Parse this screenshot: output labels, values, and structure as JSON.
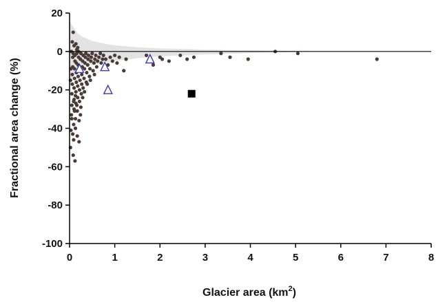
{
  "chart_data": {
    "type": "scatter",
    "xlabel": "Glacier area (km",
    "xlabel_sup": "2",
    "xlabel_close": ")",
    "ylabel": "Fractional area change (%)",
    "xlim": [
      0,
      8
    ],
    "ylim": [
      -100,
      20
    ],
    "x_ticks": [
      0,
      1,
      2,
      3,
      4,
      5,
      6,
      7,
      8
    ],
    "y_ticks": [
      20,
      0,
      -20,
      -40,
      -60,
      -80,
      -100
    ],
    "grid": false,
    "legend": "none",
    "colors": {
      "axis": "#000000",
      "band": "#e3e3e3",
      "dots": "#4a3b37",
      "triangles": "#3a3ab8",
      "square": "#000000"
    },
    "band": {
      "x": [
        0.0,
        0.05,
        0.1,
        0.2,
        0.3,
        0.5,
        0.8,
        1.0,
        1.5,
        2.0,
        3.0,
        4.0,
        5.0
      ],
      "upper": [
        16,
        14,
        12,
        9,
        7.5,
        5.5,
        4,
        3.2,
        2.2,
        1.6,
        1.0,
        0.6,
        0.3
      ],
      "lower": [
        -18,
        -15,
        -12,
        -9,
        -8,
        -7,
        -6,
        -5,
        -3.5,
        -2.5,
        -1.5,
        -0.8,
        -0.3
      ]
    },
    "series": [
      {
        "marker": "dot",
        "points": [
          [
            0.02,
            -50
          ],
          [
            0.03,
            -41
          ],
          [
            0.04,
            -33
          ],
          [
            0.05,
            -28
          ],
          [
            0.05,
            -22
          ],
          [
            0.06,
            -17
          ],
          [
            0.06,
            -12
          ],
          [
            0.07,
            -8
          ],
          [
            0.07,
            -3
          ],
          [
            0.08,
            -1
          ],
          [
            0.08,
            -54
          ],
          [
            0.09,
            -46
          ],
          [
            0.09,
            -38
          ],
          [
            0.1,
            -30
          ],
          [
            0.1,
            -25
          ],
          [
            0.1,
            -19
          ],
          [
            0.11,
            -14
          ],
          [
            0.11,
            -9
          ],
          [
            0.12,
            -5
          ],
          [
            0.12,
            -2
          ],
          [
            0.12,
            -57
          ],
          [
            0.13,
            -40
          ],
          [
            0.13,
            -35
          ],
          [
            0.14,
            -27
          ],
          [
            0.14,
            -21
          ],
          [
            0.15,
            -16
          ],
          [
            0.15,
            -11
          ],
          [
            0.15,
            -6
          ],
          [
            0.16,
            -1
          ],
          [
            0.16,
            1
          ],
          [
            0.17,
            -44
          ],
          [
            0.17,
            -31
          ],
          [
            0.18,
            -24
          ],
          [
            0.18,
            -18
          ],
          [
            0.19,
            -13
          ],
          [
            0.19,
            -7
          ],
          [
            0.2,
            -3
          ],
          [
            0.2,
            0
          ],
          [
            0.21,
            -47
          ],
          [
            0.21,
            -36
          ],
          [
            0.22,
            -26
          ],
          [
            0.22,
            -20
          ],
          [
            0.23,
            -15
          ],
          [
            0.23,
            -10
          ],
          [
            0.24,
            -4
          ],
          [
            0.25,
            -1
          ],
          [
            0.25,
            -29
          ],
          [
            0.26,
            -22
          ],
          [
            0.27,
            -17
          ],
          [
            0.27,
            -12
          ],
          [
            0.28,
            -8
          ],
          [
            0.29,
            -5
          ],
          [
            0.3,
            -2
          ],
          [
            0.3,
            -19
          ],
          [
            0.32,
            -14
          ],
          [
            0.33,
            -9
          ],
          [
            0.34,
            -6
          ],
          [
            0.35,
            -3
          ],
          [
            0.36,
            -1
          ],
          [
            0.37,
            -16
          ],
          [
            0.38,
            -11
          ],
          [
            0.4,
            -7
          ],
          [
            0.41,
            -4
          ],
          [
            0.42,
            -2
          ],
          [
            0.44,
            -13
          ],
          [
            0.45,
            -9
          ],
          [
            0.47,
            -5
          ],
          [
            0.48,
            -3
          ],
          [
            0.5,
            -1
          ],
          [
            0.52,
            -10
          ],
          [
            0.54,
            -6
          ],
          [
            0.56,
            -4
          ],
          [
            0.58,
            -2
          ],
          [
            0.6,
            -8
          ],
          [
            0.62,
            -5
          ],
          [
            0.65,
            -3
          ],
          [
            0.68,
            -1
          ],
          [
            0.7,
            -6
          ],
          [
            0.73,
            -4
          ],
          [
            0.75,
            -2
          ],
          [
            0.08,
            10
          ],
          [
            0.06,
            5
          ],
          [
            0.1,
            3
          ],
          [
            0.04,
            0
          ],
          [
            0.14,
            4
          ],
          [
            0.18,
            2
          ],
          [
            0.03,
            -9
          ],
          [
            0.02,
            -15
          ],
          [
            0.05,
            -35
          ],
          [
            0.07,
            -43
          ],
          [
            0.09,
            -26
          ],
          [
            0.11,
            -31
          ],
          [
            0.13,
            -23
          ],
          [
            0.16,
            -28
          ],
          [
            0.24,
            -33
          ],
          [
            0.29,
            -24
          ],
          [
            0.33,
            -21
          ],
          [
            0.39,
            -17
          ],
          [
            0.46,
            -15
          ],
          [
            0.55,
            -12
          ],
          [
            0.8,
            -4
          ],
          [
            0.85,
            -7
          ],
          [
            0.9,
            -3
          ],
          [
            0.95,
            -5
          ],
          [
            1.0,
            -2
          ],
          [
            1.05,
            -6
          ],
          [
            1.1,
            -3
          ],
          [
            1.2,
            -10
          ],
          [
            1.25,
            -4
          ],
          [
            1.7,
            -2
          ],
          [
            1.8,
            -5
          ],
          [
            1.85,
            -7
          ],
          [
            2.0,
            -3
          ],
          [
            2.05,
            -4
          ],
          [
            2.2,
            -5
          ],
          [
            2.45,
            -2
          ],
          [
            2.6,
            -4
          ],
          [
            2.75,
            -3
          ],
          [
            3.35,
            -1
          ],
          [
            3.55,
            -3
          ],
          [
            3.95,
            -4
          ],
          [
            4.55,
            0
          ],
          [
            5.05,
            -1
          ],
          [
            6.8,
            -4
          ]
        ]
      },
      {
        "marker": "triangle",
        "points": [
          [
            0.22,
            -9
          ],
          [
            0.78,
            -8
          ],
          [
            0.85,
            -20
          ],
          [
            1.78,
            -4
          ]
        ]
      },
      {
        "marker": "square",
        "points": [
          [
            2.7,
            -22
          ]
        ]
      }
    ]
  }
}
